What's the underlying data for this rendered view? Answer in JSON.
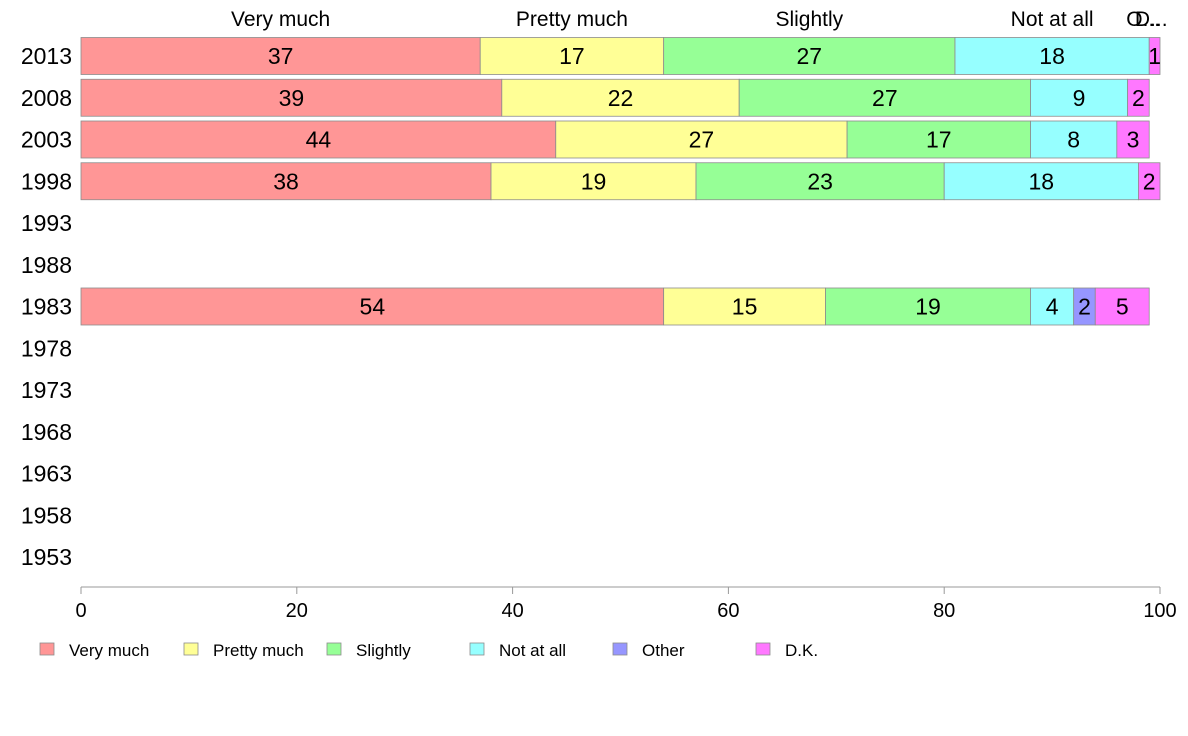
{
  "chart_data": {
    "type": "bar",
    "orientation": "horizontal",
    "stacked": true,
    "title": "",
    "xlabel": "",
    "ylabel": "",
    "xlim": [
      0,
      100
    ],
    "x_ticks": [
      "0",
      "20",
      "40",
      "60",
      "80",
      "100"
    ],
    "grid": false,
    "legend_position": "bottom",
    "categories": [
      "2013",
      "2008",
      "2003",
      "1998",
      "1993",
      "1988",
      "1983",
      "1978",
      "1973",
      "1968",
      "1963",
      "1958",
      "1953"
    ],
    "top_labels": [
      "Very much",
      "Pretty much",
      "Slightly",
      "Not at all",
      "O...",
      "D..."
    ],
    "series": [
      {
        "name": "Very much",
        "color": "#ff9696",
        "values": [
          37,
          39,
          44,
          38,
          null,
          null,
          54,
          null,
          null,
          null,
          null,
          null,
          null
        ]
      },
      {
        "name": "Pretty much",
        "color": "#ffff96",
        "values": [
          17,
          22,
          27,
          19,
          null,
          null,
          15,
          null,
          null,
          null,
          null,
          null,
          null
        ]
      },
      {
        "name": "Slightly",
        "color": "#96ff96",
        "values": [
          27,
          27,
          17,
          23,
          null,
          null,
          19,
          null,
          null,
          null,
          null,
          null,
          null
        ]
      },
      {
        "name": "Not at all",
        "color": "#96ffff",
        "values": [
          18,
          9,
          8,
          18,
          null,
          null,
          4,
          null,
          null,
          null,
          null,
          null,
          null
        ]
      },
      {
        "name": "Other",
        "color": "#9696ff",
        "values": [
          0,
          0,
          0,
          0,
          null,
          null,
          2,
          null,
          null,
          null,
          null,
          null,
          null
        ]
      },
      {
        "name": "D.K.",
        "color": "#ff78ff",
        "values": [
          1,
          2,
          3,
          2,
          null,
          null,
          5,
          null,
          null,
          null,
          null,
          null,
          null
        ]
      }
    ]
  }
}
